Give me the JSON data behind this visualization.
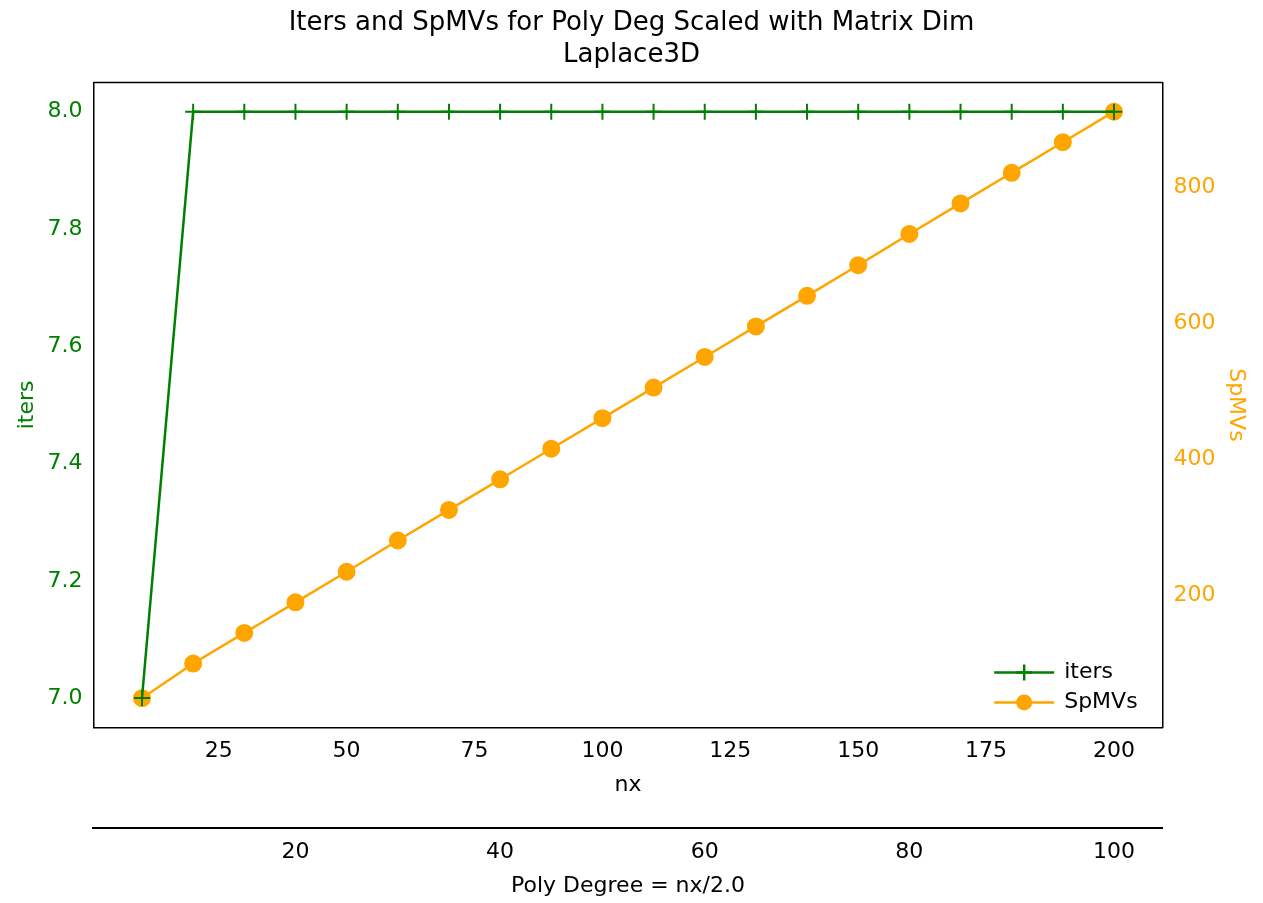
{
  "chart_data": {
    "type": "line",
    "title": "Iters and SpMVs for Poly Deg Scaled with Matrix Dim\nLaplace3D",
    "xlabel": "nx",
    "ylabel": "iters",
    "y2label": "SpMVs",
    "x2label": "Poly Degree = nx/2.0",
    "x": [
      10,
      20,
      30,
      40,
      50,
      60,
      70,
      80,
      90,
      100,
      110,
      120,
      130,
      140,
      150,
      160,
      170,
      180,
      190,
      200
    ],
    "series": [
      {
        "name": "iters",
        "color": "#008000",
        "marker": "cross",
        "values": [
          7,
          8,
          8,
          8,
          8,
          8,
          8,
          8,
          8,
          8,
          8,
          8,
          8,
          8,
          8,
          8,
          8,
          8,
          8,
          8
        ]
      },
      {
        "name": "SpMVs",
        "color": "#ffa500",
        "marker": "circle",
        "axis": "y2",
        "values": [
          49,
          100,
          145,
          190,
          235,
          281,
          326,
          371,
          416,
          461,
          506,
          551,
          596,
          641,
          686,
          732,
          777,
          822,
          867,
          912
        ]
      }
    ],
    "xlim": [
      0.5,
      209.5
    ],
    "xticks": [
      25,
      50,
      75,
      100,
      125,
      150,
      175,
      200
    ],
    "x2lim": [
      0.25,
      104.75
    ],
    "x2ticks": [
      20,
      40,
      60,
      80,
      100
    ],
    "ylim": [
      6.95,
      8.05
    ],
    "yticks": [
      {
        "value": 7,
        "label": "7.0"
      },
      7.2,
      7.4,
      7.6,
      7.8,
      {
        "value": 8,
        "label": "8.0"
      }
    ],
    "y2lim": [
      6,
      955
    ],
    "y2ticks": [
      200,
      400,
      600,
      800
    ],
    "legend": "bottom right",
    "grid": false
  }
}
